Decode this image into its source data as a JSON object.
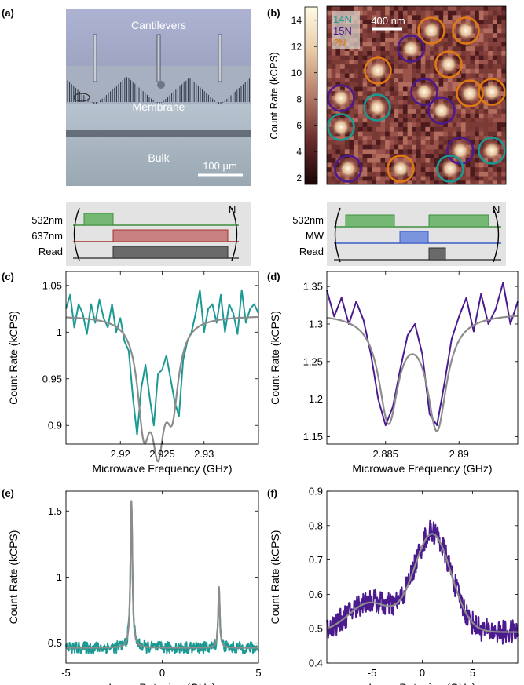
{
  "panels": {
    "a": {
      "letter": "(a)",
      "labels": {
        "top": "Cantilevers",
        "middle": "Membrane",
        "bottom": "Bulk"
      },
      "scale_bar": "100 µm"
    },
    "b": {
      "letter": "(b)",
      "colorbar": {
        "label": "Count Rate (kCPS)",
        "ticks": [
          2,
          4,
          6,
          8,
          10,
          12,
          14
        ],
        "range": [
          1.5,
          15
        ]
      },
      "legend": [
        {
          "text": "14N",
          "color": "#1a9a92"
        },
        {
          "text": "15N",
          "color": "#4b1a8f"
        },
        {
          "text": "?N",
          "color": "#e07b13"
        }
      ],
      "scale_bar": "400 nm"
    },
    "seq_left": {
      "labels": [
        "532nm",
        "637nm",
        "Read"
      ],
      "repeat": "N",
      "colors": [
        "#5aa65a",
        "#b24040",
        "#5a5a5a"
      ]
    },
    "seq_right": {
      "labels": [
        "532nm",
        "MW",
        "Read"
      ],
      "repeat": "N",
      "colors": [
        "#5aa65a",
        "#3a5cc4",
        "#5a5a5a"
      ]
    },
    "c": {
      "letter": "(c)"
    },
    "d": {
      "letter": "(d)"
    },
    "e": {
      "letter": "(e)"
    },
    "f": {
      "letter": "(f)"
    }
  },
  "chart_data": [
    {
      "id": "c",
      "type": "line",
      "xlabel": "Microwave Frequency (GHz)",
      "ylabel": "Count Rate (kCPS)",
      "xlim": [
        2.9135,
        2.9365
      ],
      "ylim": [
        0.88,
        1.065
      ],
      "xticks": [
        2.92,
        2.925,
        2.93
      ],
      "xtick_labels": [
        "2.92",
        "2.925",
        "2.93"
      ],
      "yticks": [
        0.9,
        0.95,
        1.0,
        1.05
      ],
      "ytick_labels": [
        "0.9",
        "0.95",
        "1",
        "1.05"
      ],
      "series": [
        {
          "role": "data",
          "color": "#1a9a92",
          "x": [
            2.9135,
            2.914,
            2.9145,
            2.915,
            2.9155,
            2.916,
            2.9165,
            2.917,
            2.9175,
            2.918,
            2.9185,
            2.919,
            2.9195,
            2.92,
            2.9205,
            2.921,
            2.9215,
            2.922,
            2.9225,
            2.923,
            2.9235,
            2.924,
            2.9245,
            2.925,
            2.9255,
            2.926,
            2.9265,
            2.927,
            2.9275,
            2.928,
            2.9285,
            2.929,
            2.9295,
            2.93,
            2.9305,
            2.931,
            2.9315,
            2.932,
            2.9325,
            2.933,
            2.9335,
            2.934,
            2.9345,
            2.935,
            2.9355,
            2.936,
            2.9365
          ],
          "y": [
            1.025,
            1.04,
            1.005,
            1.03,
            1.02,
            0.998,
            1.03,
            1.01,
            1.035,
            1.015,
            1.005,
            1.03,
            1.0,
            1.015,
            0.99,
            0.98,
            0.93,
            0.89,
            0.94,
            0.965,
            0.93,
            0.9,
            0.955,
            0.96,
            0.975,
            0.95,
            0.925,
            0.91,
            0.97,
            0.99,
            1.0,
            1.02,
            1.045,
            1.0,
            1.025,
            1.03,
            1.01,
            1.04,
            1.0,
            1.03,
            1.02,
            0.998,
            1.045,
            1.01,
            1.025,
            1.03,
            1.02
          ]
        },
        {
          "role": "fit",
          "color": "#8c8c8c",
          "model": "lorentzian_dips",
          "baseline": 1.018,
          "dips": [
            {
              "center": 2.9228,
              "depth": 0.105,
              "hwhm": 0.0009
            },
            {
              "center": 2.9245,
              "depth": 0.115,
              "hwhm": 0.0009
            },
            {
              "center": 2.9262,
              "depth": 0.085,
              "hwhm": 0.0009
            }
          ]
        }
      ]
    },
    {
      "id": "d",
      "type": "line",
      "xlabel": "Microwave Frequency (GHz)",
      "ylabel": "Count Rate (kCPS)",
      "xlim": [
        2.881,
        2.894
      ],
      "ylim": [
        1.14,
        1.37
      ],
      "xticks": [
        2.885,
        2.89
      ],
      "xtick_labels": [
        "2.885",
        "2.89"
      ],
      "yticks": [
        1.15,
        1.2,
        1.25,
        1.3,
        1.35
      ],
      "ytick_labels": [
        "1.15",
        "1.2",
        "1.25",
        "1.3",
        "1.35"
      ],
      "series": [
        {
          "role": "data",
          "color": "#4b1a8f",
          "x": [
            2.881,
            2.8815,
            2.882,
            2.8825,
            2.883,
            2.8835,
            2.884,
            2.8845,
            2.885,
            2.8855,
            2.886,
            2.8865,
            2.887,
            2.8875,
            2.888,
            2.8885,
            2.889,
            2.8895,
            2.89,
            2.8905,
            2.891,
            2.8915,
            2.892,
            2.8925,
            2.893,
            2.8935,
            2.894
          ],
          "y": [
            1.345,
            1.31,
            1.335,
            1.3,
            1.33,
            1.305,
            1.26,
            1.2,
            1.165,
            1.19,
            1.24,
            1.285,
            1.3,
            1.26,
            1.18,
            1.165,
            1.22,
            1.28,
            1.31,
            1.335,
            1.29,
            1.34,
            1.3,
            1.32,
            1.355,
            1.3,
            1.33
          ]
        },
        {
          "role": "fit",
          "color": "#8c8c8c",
          "model": "lorentzian_dips",
          "baseline": 1.315,
          "dips": [
            {
              "center": 2.8852,
              "depth": 0.14,
              "hwhm": 0.0008
            },
            {
              "center": 2.8885,
              "depth": 0.15,
              "hwhm": 0.0008
            }
          ]
        }
      ]
    },
    {
      "id": "e",
      "type": "line",
      "xlabel": "Laser Detuning (GHz)",
      "ylabel": "Count Rate (kCPS)",
      "xlim": [
        -5,
        5
      ],
      "ylim": [
        0.35,
        1.65
      ],
      "xticks": [
        -5,
        0,
        5
      ],
      "xtick_labels": [
        "-5",
        "0",
        "5"
      ],
      "yticks": [
        0.5,
        1.0,
        1.5
      ],
      "ytick_labels": [
        "0.5",
        "1",
        "1.5"
      ],
      "series": [
        {
          "role": "data",
          "color": "#1a9a92",
          "model": "lorentzian_peaks",
          "baseline": 0.465,
          "noise": 0.045,
          "peaks": [
            {
              "center": -1.6,
              "height": 1.14,
              "hwhm": 0.06
            },
            {
              "center": 2.95,
              "height": 0.47,
              "hwhm": 0.05
            }
          ]
        },
        {
          "role": "fit",
          "color": "#8c8c8c",
          "model": "lorentzian_peaks",
          "baseline": 0.465,
          "peaks": [
            {
              "center": -1.6,
              "height": 1.11,
              "hwhm": 0.06
            },
            {
              "center": 2.95,
              "height": 0.46,
              "hwhm": 0.05
            }
          ]
        }
      ]
    },
    {
      "id": "f",
      "type": "line",
      "xlabel": "Laser Detuning (GHz)",
      "ylabel": "Count Rate (kCPS)",
      "xlim": [
        -9.5,
        9.5
      ],
      "ylim": [
        0.4,
        0.9
      ],
      "xticks": [
        -5,
        0,
        5
      ],
      "xtick_labels": [
        "-5",
        "0",
        "5"
      ],
      "yticks": [
        0.4,
        0.5,
        0.6,
        0.7,
        0.8,
        0.9
      ],
      "ytick_labels": [
        "0.4",
        "0.5",
        "0.6",
        "0.7",
        "0.8",
        "0.9"
      ],
      "series": [
        {
          "role": "data",
          "color": "#4b1a8f",
          "model": "gaussian_peaks",
          "baseline": 0.49,
          "noise": 0.035,
          "peaks": [
            {
              "center": -5.2,
              "height": 0.09,
              "sigma": 2.1
            },
            {
              "center": 1.0,
              "height": 0.29,
              "sigma": 1.85
            }
          ]
        },
        {
          "role": "fit",
          "color": "#8c8c8c",
          "model": "gaussian_peaks",
          "baseline": 0.49,
          "peaks": [
            {
              "center": -5.2,
              "height": 0.085,
              "sigma": 2.1
            },
            {
              "center": 1.0,
              "height": 0.285,
              "sigma": 1.85
            }
          ]
        }
      ]
    }
  ]
}
